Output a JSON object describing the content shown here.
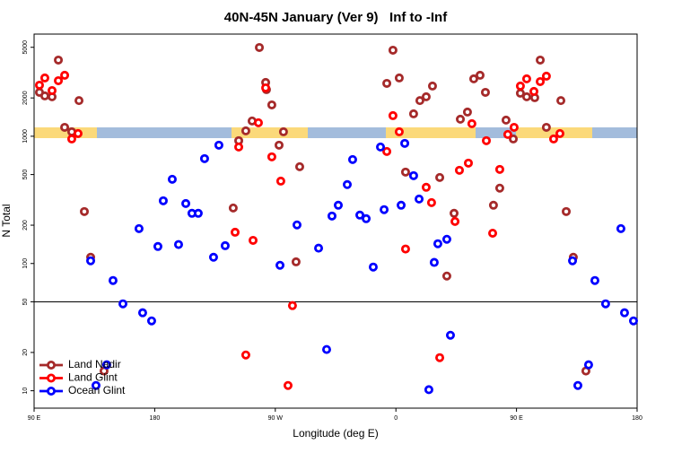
{
  "chart_data": {
    "type": "scatter",
    "title": "40N-45N January (Ver 9)   Inf to -Inf",
    "x_label": "Longitude (deg E)",
    "y_label": "N Total",
    "y_log": true,
    "reference_line": 50,
    "legend_position": "bottom-left",
    "xlim": [
      90,
      540
    ],
    "xticks": [
      {
        "value": 90,
        "label": "90 E"
      },
      180,
      {
        "value": 270,
        "label": "90 W"
      },
      {
        "value": 360,
        "label": "0"
      },
      {
        "value": 450,
        "label": "90 E"
      },
      180
    ],
    "ylim": [
      7.3,
      6350
    ],
    "yticks": [
      10,
      20,
      50,
      100,
      200,
      500,
      1000,
      2000,
      5000
    ],
    "series": [
      {
        "name": "Land Nadir",
        "color": "#a52a2a",
        "x": [
          94.0,
          98.0,
          103.4,
          108.1,
          112.8,
          118.1,
          123.5,
          127.5,
          132.2,
          142.2,
          238.6,
          242.7,
          248.0,
          252.7,
          258.1,
          262.8,
          263.4,
          267.4,
          272.8,
          276.1,
          285.5,
          288.2,
          353.2,
          357.8,
          362.5,
          367.2,
          373.2,
          377.9,
          382.6,
          387.3,
          392.7,
          398.0,
          403.4,
          408.1,
          413.4,
          418.1,
          422.8,
          426.8,
          432.8,
          437.5,
          442.2,
          447.6,
          452.9,
          457.6,
          463.6,
          467.7,
          472.3,
          483.1,
          487.1,
          492.4,
          501.8
        ],
        "values": [
          2213,
          2075,
          2042,
          3970,
          1175,
          1084,
          1906,
          256,
          112,
          14.3,
          273,
          923,
          1102,
          1318,
          4980,
          2646,
          2325,
          1763,
          851,
          1084,
          103,
          576,
          2603,
          4746,
          2870,
          523,
          1500,
          1906,
          2042,
          2480,
          474,
          79.7,
          248,
          1361,
          1549,
          2825,
          3013,
          2213,
          287,
          391,
          1339,
          952,
          2178,
          2042,
          2009,
          3970,
          1175,
          1906,
          256,
          112,
          14.3
        ]
      },
      {
        "name": "Land Glint",
        "color": "#ff0000",
        "x": [
          94.0,
          98.0,
          103.4,
          108.1,
          112.8,
          118.1,
          122.8,
          240.0,
          242.7,
          248.0,
          253.4,
          257.4,
          262.8,
          267.4,
          274.1,
          279.5,
          282.8,
          353.2,
          357.8,
          362.5,
          367.2,
          382.6,
          386.6,
          392.7,
          404.1,
          407.4,
          414.1,
          416.7,
          427.5,
          432.2,
          437.5,
          443.5,
          448.2,
          452.9,
          457.6,
          463.0,
          467.7,
          472.3,
          477.7,
          482.4
        ],
        "values": [
          2520,
          2870,
          2286,
          2732,
          3013,
          952,
          1050,
          176,
          823,
          19.1,
          152,
          1276,
          2399,
          689,
          444,
          11.0,
          46.7,
          759,
          1452,
          1084,
          130,
          397,
          301,
          18.2,
          214,
          540,
          615,
          1255,
          923,
          173,
          549,
          1033,
          1175,
          2480,
          2825,
          2250,
          2689,
          2965,
          952,
          1050
        ]
      },
      {
        "name": "Ocean Glint",
        "color": "#0000ff",
        "x": [
          132.2,
          136.2,
          144.2,
          148.9,
          156.3,
          168.3,
          171.0,
          177.7,
          182.4,
          186.4,
          193.1,
          197.8,
          203.2,
          207.8,
          212.5,
          217.2,
          223.9,
          227.9,
          232.6,
          273.5,
          286.2,
          302.3,
          308.3,
          312.3,
          317.0,
          323.7,
          327.7,
          333.1,
          337.8,
          343.1,
          348.5,
          351.2,
          363.9,
          366.6,
          373.2,
          377.3,
          384.6,
          388.6,
          391.3,
          398.0,
          400.7,
          491.8,
          495.8,
          503.8,
          508.5,
          516.5,
          527.9,
          530.6,
          537.3
        ],
        "values": [
          105,
          11.0,
          16.0,
          73.5,
          48.2,
          188,
          41.0,
          35.4,
          136,
          311,
          459,
          141,
          296,
          248,
          248,
          667,
          112,
          851,
          138,
          96.8,
          201,
          132,
          21.1,
          236,
          287,
          417,
          656,
          240,
          225,
          93.8,
          823,
          265,
          287,
          879,
          490,
          321,
          10.2,
          102,
          143,
          155,
          27.3,
          105,
          11.0,
          16.0,
          73.5,
          48.2,
          188,
          41.0,
          35.4
        ]
      }
    ]
  }
}
